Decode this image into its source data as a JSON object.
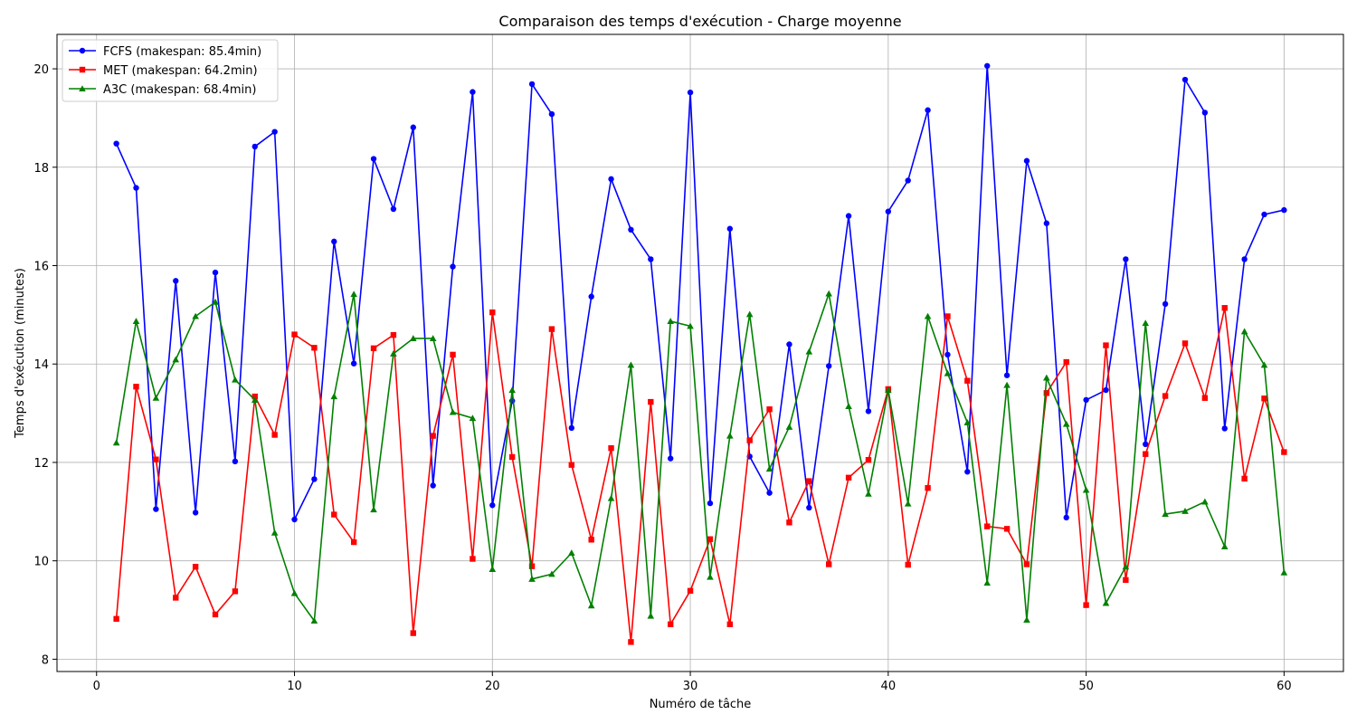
{
  "chart_data": {
    "type": "line",
    "title": "Comparaison des temps d'exécution - Charge moyenne",
    "xlabel": "Numéro de tâche",
    "ylabel": "Temps d'exécution (minutes)",
    "xlim": [
      -2,
      63
    ],
    "ylim": [
      7.75,
      20.7
    ],
    "xticks": [
      0,
      10,
      20,
      30,
      40,
      50,
      60
    ],
    "yticks": [
      8,
      10,
      12,
      14,
      16,
      18,
      20
    ],
    "grid": true,
    "legend_position": "top-left",
    "x": [
      1,
      2,
      3,
      4,
      5,
      6,
      7,
      8,
      9,
      10,
      11,
      12,
      13,
      14,
      15,
      16,
      17,
      18,
      19,
      20,
      21,
      22,
      23,
      24,
      25,
      26,
      27,
      28,
      29,
      30,
      31,
      32,
      33,
      34,
      35,
      36,
      37,
      38,
      39,
      40,
      41,
      42,
      43,
      44,
      45,
      46,
      47,
      48,
      49,
      50,
      51,
      52,
      53,
      54,
      55,
      56,
      57,
      58,
      59,
      60
    ],
    "series": [
      {
        "name": "FCFS (makespan: 85.4min)",
        "color": "#0000ff",
        "marker": "circle",
        "values": [
          18.48,
          17.58,
          11.05,
          15.69,
          10.98,
          15.86,
          12.02,
          18.42,
          18.72,
          10.84,
          11.66,
          16.49,
          14.01,
          18.17,
          17.15,
          18.81,
          11.53,
          15.98,
          19.53,
          11.13,
          13.25,
          19.69,
          19.08,
          12.7,
          15.37,
          17.76,
          16.73,
          16.13,
          12.08,
          19.52,
          11.17,
          16.75,
          12.12,
          11.38,
          14.4,
          11.08,
          13.96,
          17.01,
          13.04,
          17.1,
          17.73,
          19.16,
          14.19,
          11.81,
          20.06,
          13.77,
          18.13,
          16.86,
          10.88,
          13.27,
          13.47,
          16.13,
          12.37,
          15.22,
          19.78,
          19.11,
          12.69,
          16.13,
          17.04,
          17.13
        ]
      },
      {
        "name": "MET (makespan: 64.2min)",
        "color": "#ff0000",
        "marker": "square",
        "values": [
          8.82,
          13.54,
          12.06,
          9.25,
          9.88,
          8.91,
          9.38,
          13.34,
          12.56,
          14.6,
          14.33,
          10.94,
          10.38,
          14.32,
          14.59,
          8.53,
          12.54,
          14.19,
          10.04,
          15.05,
          12.11,
          9.89,
          14.71,
          11.95,
          10.43,
          12.29,
          8.35,
          13.23,
          8.71,
          9.39,
          10.44,
          8.71,
          12.45,
          13.08,
          10.78,
          11.62,
          9.93,
          11.69,
          12.05,
          13.49,
          9.92,
          11.48,
          14.97,
          13.66,
          10.7,
          10.65,
          9.93,
          13.41,
          14.04,
          9.1,
          14.38,
          9.61,
          12.17,
          13.35,
          14.42,
          13.31,
          15.14,
          11.67,
          13.3,
          12.21
        ]
      },
      {
        "name": "A3C (makespan: 68.4min)",
        "color": "#008000",
        "marker": "triangle",
        "values": [
          12.4,
          14.87,
          13.31,
          14.09,
          14.97,
          15.26,
          13.68,
          13.27,
          10.57,
          9.34,
          8.78,
          13.34,
          15.42,
          11.04,
          14.21,
          14.52,
          14.52,
          13.02,
          12.9,
          9.83,
          13.47,
          9.63,
          9.73,
          10.16,
          9.09,
          11.27,
          13.98,
          8.88,
          14.87,
          14.77,
          9.67,
          12.54,
          15.01,
          11.87,
          12.72,
          14.25,
          15.43,
          13.14,
          11.36,
          13.47,
          11.16,
          14.97,
          13.81,
          12.81,
          9.55,
          13.57,
          8.8,
          13.72,
          12.78,
          11.44,
          9.14,
          9.88,
          14.83,
          10.95,
          11.01,
          11.2,
          10.29,
          14.66,
          13.98,
          9.76
        ]
      }
    ]
  }
}
